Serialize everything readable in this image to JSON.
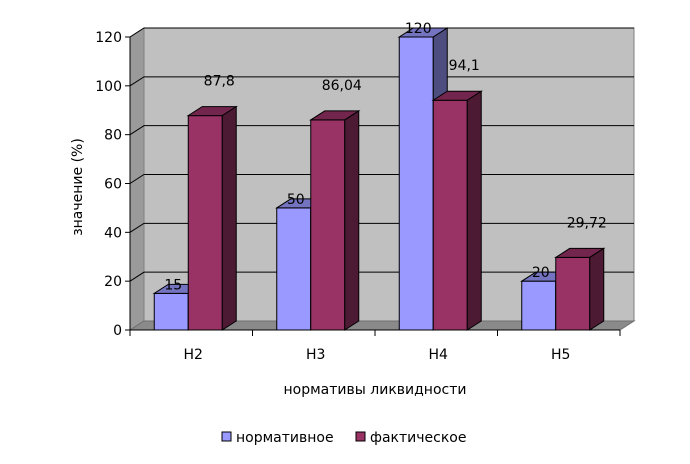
{
  "chart_data": {
    "type": "bar",
    "style": "3d-clustered-column",
    "categories": [
      "Н2",
      "Н3",
      "Н4",
      "Н5"
    ],
    "series": [
      {
        "name": "нормативное",
        "values": [
          15,
          50,
          120,
          20
        ],
        "labels": [
          "15",
          "50",
          "120",
          "20"
        ],
        "color": "#9999FF"
      },
      {
        "name": "фактическое",
        "values": [
          87.8,
          86.04,
          94.1,
          29.72
        ],
        "labels": [
          "87,8",
          "86,04",
          "94,1",
          "29,72"
        ],
        "color": "#993366"
      }
    ],
    "xlabel": "нормативы ликвидности",
    "ylabel": "значение (%)",
    "ylim": [
      0,
      120
    ],
    "yticks": [
      "0",
      "20",
      "40",
      "60",
      "80",
      "100",
      "120"
    ],
    "grid": true,
    "legend": "bottom",
    "wall_color": "#C0C0C0"
  }
}
